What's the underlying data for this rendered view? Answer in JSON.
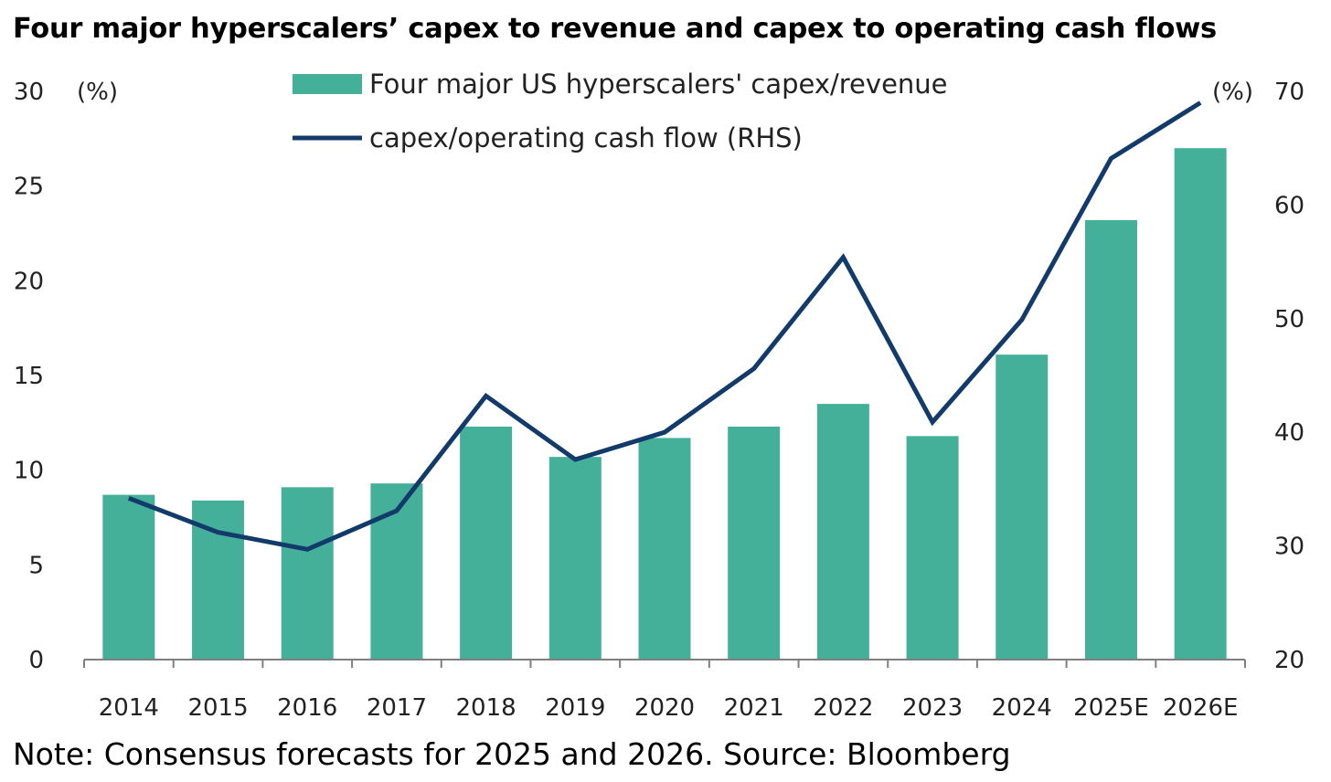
{
  "chart_data": {
    "type": "bar",
    "title": "Four major hyperscalers’ capex to revenue and capex to operating cash flows",
    "note": "Note: Consensus forecasts for 2025 and 2026. Source: Bloomberg",
    "categories": [
      "2014",
      "2015",
      "2016",
      "2017",
      "2018",
      "2019",
      "2020",
      "2021",
      "2022",
      "2023",
      "2024",
      "2025E",
      "2026E"
    ],
    "series": [
      {
        "name": "Four major US hyperscalers' capex/revenue",
        "type": "bar",
        "axis": "left",
        "color": "#45b09a",
        "values": [
          8.7,
          8.4,
          9.1,
          9.3,
          12.3,
          10.7,
          11.7,
          12.3,
          13.5,
          11.8,
          16.1,
          23.2,
          27.0
        ]
      },
      {
        "name": "capex/operating cash flow (RHS)",
        "type": "line",
        "axis": "right",
        "color": "#123a6a",
        "values": [
          34.2,
          31.2,
          29.7,
          33.1,
          43.2,
          37.6,
          40.0,
          45.6,
          55.4,
          40.9,
          49.9,
          64.1,
          69.0
        ]
      }
    ],
    "y_left": {
      "unit_label": "(%)",
      "lim": [
        0,
        30
      ],
      "ticks": [
        "0",
        "5",
        "10",
        "15",
        "20",
        "25",
        "30"
      ]
    },
    "y_right": {
      "unit_label": "(%)",
      "lim": [
        20,
        70
      ],
      "ticks": [
        "20",
        "30",
        "40",
        "50",
        "60",
        "70"
      ]
    },
    "legend_position": "top-center",
    "grid": false
  }
}
